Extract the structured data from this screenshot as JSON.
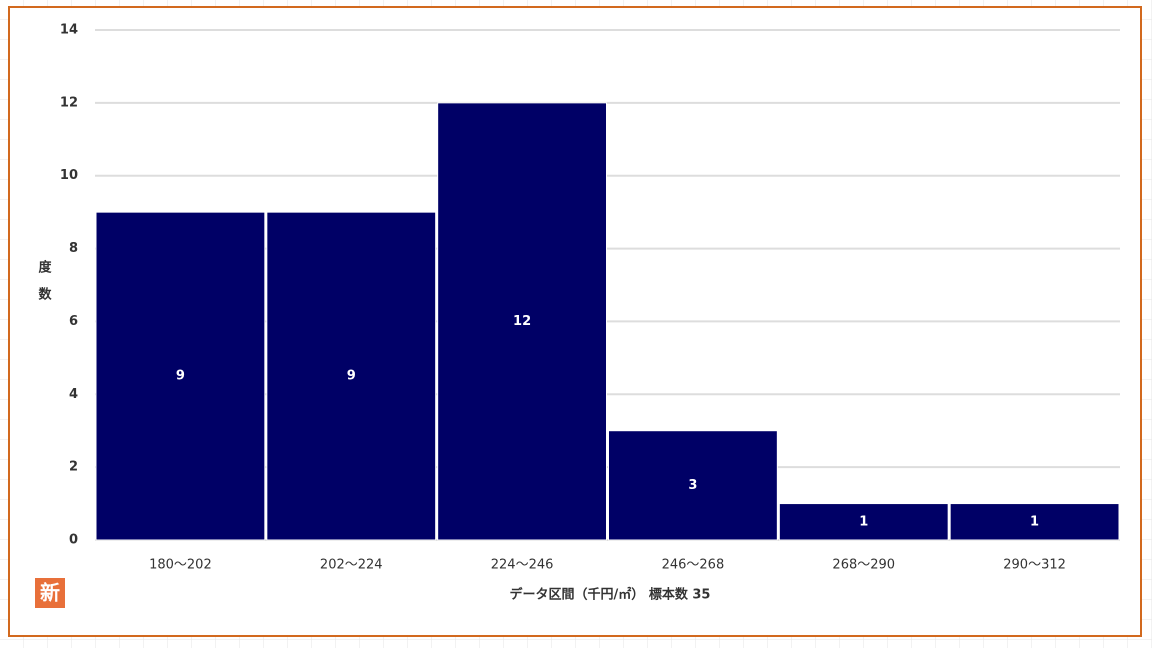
{
  "chart_data": {
    "type": "bar",
    "categories": [
      "180～202",
      "202～224",
      "224～246",
      "246～268",
      "268～290",
      "290～312"
    ],
    "values": [
      9,
      9,
      12,
      3,
      1,
      1
    ],
    "color": "#000066",
    "ylim": [
      0,
      14
    ],
    "yticks": [
      0,
      2,
      4,
      6,
      8,
      10,
      12,
      14
    ],
    "grid": true,
    "y_label": "度数",
    "x_label": "データ区間（千円/㎡） 標本数 35",
    "badge": "新"
  }
}
